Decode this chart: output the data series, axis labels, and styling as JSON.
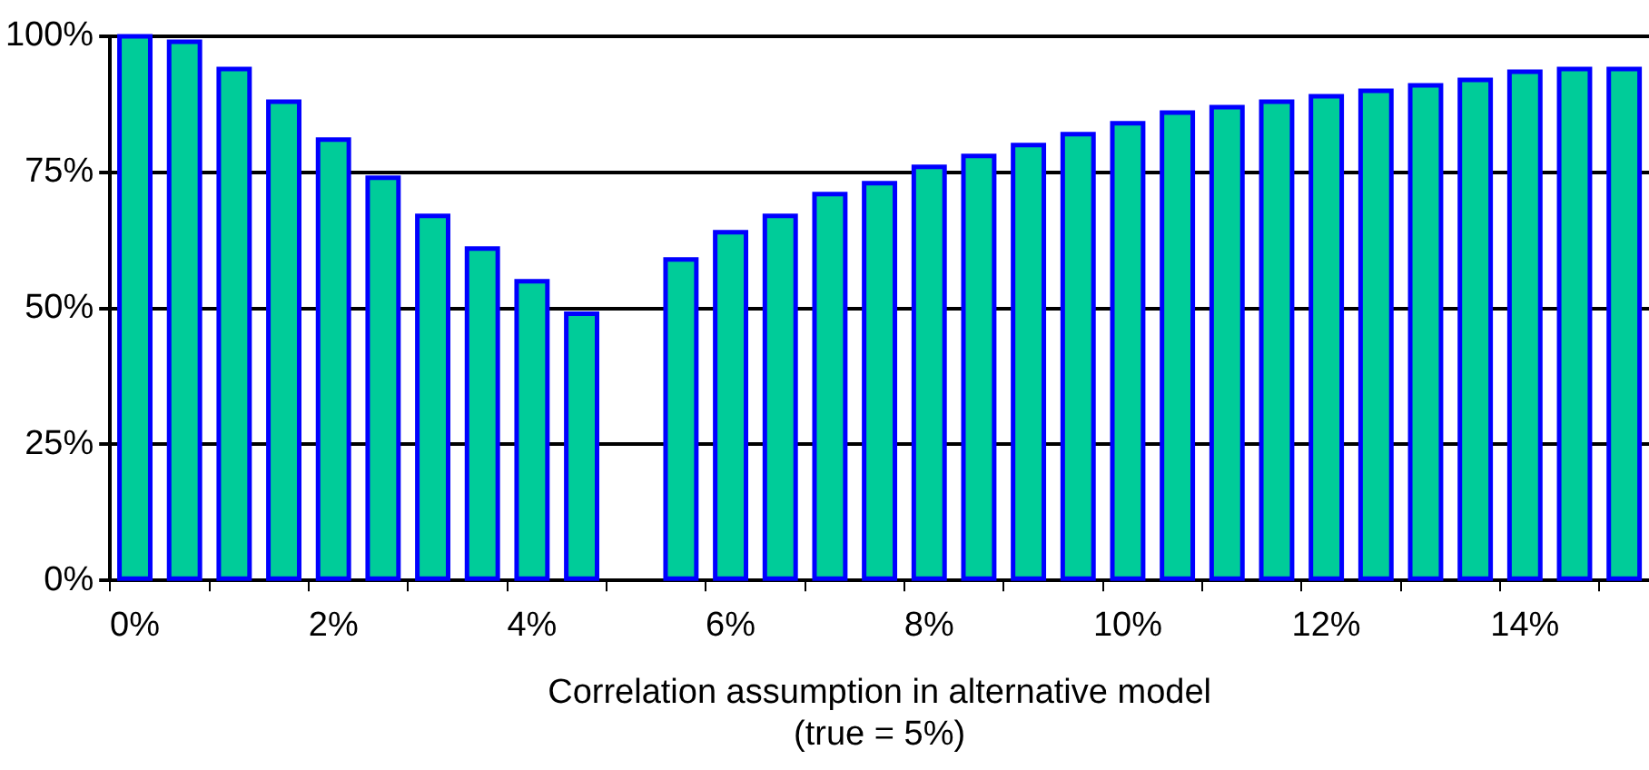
{
  "chart_data": {
    "type": "bar",
    "xlabel": "Correlation assumption in alternative model\n(true = 5%)",
    "categories": [
      "0%",
      null,
      null,
      null,
      "2%",
      null,
      null,
      null,
      "4%",
      null,
      null,
      null,
      "6%",
      null,
      null,
      null,
      "8%",
      null,
      null,
      null,
      "10%",
      null,
      null,
      null,
      "12%",
      null,
      null,
      null,
      "14%",
      null,
      null
    ],
    "values": [
      100,
      99,
      94,
      88,
      81,
      74,
      67,
      61,
      55,
      49,
      null,
      59,
      64,
      67,
      71,
      73,
      76,
      78,
      80,
      82,
      84,
      86,
      87,
      88,
      89,
      90,
      91,
      92,
      93.5,
      94,
      94
    ],
    "color": "#00cc99",
    "ylim": [
      0,
      100
    ],
    "yticks": [
      {
        "value": 0,
        "label": "0%"
      },
      {
        "value": 25,
        "label": "25%"
      },
      {
        "value": 50,
        "label": "50%"
      },
      {
        "value": 75,
        "label": "75%"
      },
      {
        "value": 100,
        "label": "100%"
      }
    ],
    "grid": "y",
    "legend": false
  }
}
